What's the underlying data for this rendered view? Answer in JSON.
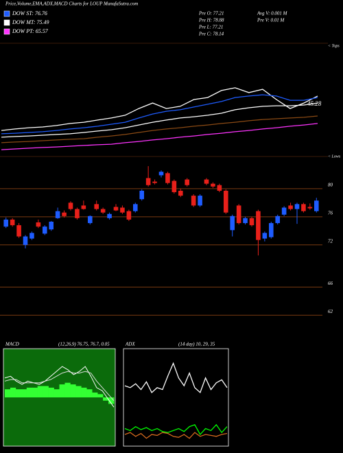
{
  "header": {
    "title": "Price,Volume,EMA,ADX,MACD Charts for LOUP MunafaSutra.com",
    "info": [
      "Pre  O: 77.21",
      "Pre  H: 78.88",
      "Pre  L: 77.21",
      "Pre  C: 78.14",
      "Avg  V: 0.001 M",
      "Pre  V: 0.01 M"
    ]
  },
  "chart_data": [
    {
      "type": "line",
      "ylim": [
        40,
        100
      ],
      "annotations": [
        "45.28",
        "< Tops",
        "< Lows"
      ],
      "series": [
        {
          "color": "#ffffff",
          "values": [
            53.1,
            53.9,
            54.6,
            55.0,
            55.8,
            56.9,
            57.6,
            58.8,
            59.9,
            61.4,
            65.1,
            68.1,
            65.1,
            66.3,
            70.0,
            71.1,
            74.9,
            76.4,
            73.8,
            75.6,
            70.0,
            65.1,
            68.1,
            71.9
          ]
        },
        {
          "name": "DOW ST: 76.76",
          "color": "#1e5cff",
          "values": [
            51.3,
            51.6,
            52.0,
            52.4,
            53.1,
            53.9,
            54.6,
            55.4,
            56.5,
            57.6,
            59.9,
            62.1,
            63.6,
            64.4,
            65.9,
            67.4,
            68.9,
            71.1,
            71.9,
            72.6,
            71.9,
            69.6,
            69.6,
            71.1
          ]
        },
        {
          "name": "DOW MT: 75.49",
          "color": "#ffffff",
          "values": [
            49.4,
            49.8,
            50.1,
            50.5,
            50.9,
            51.3,
            52.0,
            52.8,
            53.5,
            54.6,
            56.1,
            57.6,
            58.8,
            59.9,
            60.6,
            61.4,
            62.5,
            64.4,
            65.5,
            66.3,
            66.6,
            66.6,
            67.0,
            68.1
          ]
        },
        {
          "color": "#8b4a14",
          "values": [
            46.4,
            46.8,
            47.1,
            47.5,
            47.9,
            48.3,
            48.6,
            49.4,
            50.1,
            50.9,
            52.0,
            53.1,
            53.9,
            54.6,
            55.4,
            56.1,
            56.9,
            57.6,
            58.4,
            59.1,
            59.5,
            59.9,
            60.3,
            61.0
          ]
        },
        {
          "name": "DOW PT: 65.57",
          "color": "#ff33ff",
          "values": [
            42.6,
            43.0,
            43.4,
            43.8,
            44.1,
            44.5,
            44.9,
            45.3,
            45.6,
            46.4,
            47.1,
            47.9,
            48.6,
            49.4,
            50.1,
            50.9,
            51.6,
            52.4,
            53.1,
            53.9,
            54.6,
            55.4,
            56.1,
            56.9
          ]
        }
      ]
    },
    {
      "type": "candlestick",
      "ylim": [
        59,
        83.4
      ],
      "yticks": [
        80,
        76,
        72,
        66,
        62
      ],
      "grid": true,
      "up_color": "#1e5cff",
      "down_color": "#e8201a",
      "grid_color": "#7a3a10",
      "open": [
        74.6,
        75.6,
        74.8,
        72.0,
        72.9,
        75.2,
        73.6,
        74.2,
        75.8,
        76.6,
        78.0,
        77.1,
        77.6,
        75.1,
        77.8,
        77.1,
        75.8,
        77.4,
        77.3,
        76.8,
        76.8,
        78.5,
        81.5,
        81.0,
        81.9,
        82.2,
        81.1,
        79.7,
        81.3,
        79.0,
        77.6,
        81.3,
        80.7,
        80.5,
        79.7,
        74.1,
        77.6,
        75.1,
        75.8,
        76.8,
        72.9,
        73.1,
        75.1,
        76.3,
        77.6,
        77.1,
        77.8,
        77.4,
        76.8
      ],
      "high": [
        75.9,
        75.8,
        75.1,
        73.4,
        73.9,
        75.6,
        74.8,
        75.4,
        77.3,
        76.9,
        78.2,
        77.3,
        78.3,
        76.2,
        78.3,
        77.3,
        76.6,
        77.8,
        77.6,
        77.0,
        78.0,
        79.9,
        83.2,
        81.3,
        82.6,
        82.4,
        81.3,
        80.0,
        81.5,
        79.2,
        79.2,
        81.5,
        80.9,
        80.7,
        79.9,
        76.3,
        77.8,
        76.0,
        76.0,
        77.0,
        73.9,
        75.3,
        76.3,
        77.5,
        78.0,
        78.0,
        78.0,
        77.9,
        78.7
      ],
      "low": [
        74.4,
        74.6,
        73.0,
        71.5,
        72.7,
        74.4,
        73.4,
        74.0,
        75.7,
        75.9,
        76.9,
        75.6,
        77.0,
        74.9,
        76.9,
        76.4,
        75.6,
        76.8,
        76.4,
        75.4,
        76.6,
        78.3,
        80.3,
        80.6,
        81.6,
        80.6,
        79.3,
        78.8,
        80.3,
        77.4,
        77.4,
        80.5,
        80.1,
        79.5,
        76.4,
        73.2,
        74.9,
        74.9,
        74.6,
        70.5,
        72.5,
        72.9,
        74.9,
        76.1,
        76.9,
        75.0,
        76.6,
        77.0,
        76.6
      ],
      "close": [
        75.6,
        74.8,
        73.2,
        73.2,
        73.7,
        74.6,
        74.6,
        75.3,
        76.8,
        76.1,
        77.1,
        75.8,
        77.1,
        76.1,
        77.1,
        76.6,
        76.4,
        76.9,
        76.6,
        75.6,
        77.8,
        79.7,
        80.5,
        80.8,
        82.4,
        80.8,
        79.5,
        79.0,
        80.5,
        77.6,
        79.0,
        80.7,
        80.3,
        79.7,
        76.6,
        76.1,
        75.1,
        75.8,
        74.8,
        72.7,
        73.7,
        75.1,
        76.1,
        77.3,
        77.1,
        77.8,
        76.8,
        77.2,
        78.3
      ]
    },
    {
      "type": "macd",
      "title": "MACD",
      "subtitle": "(12,26,9) 76.75, 76.7, 0.05",
      "ylim": [
        -3,
        3
      ],
      "background": "#0b6b0b",
      "series": [
        {
          "kind": "bar",
          "color": "#33ff33",
          "values": [
            0.5,
            0.6,
            0.5,
            0.5,
            0.6,
            0.6,
            0.7,
            0.7,
            0.6,
            0.5,
            0.8,
            0.9,
            0.8,
            0.7,
            0.6,
            0.5,
            0.3,
            0.2,
            -0.2,
            -0.4
          ]
        },
        {
          "kind": "line",
          "color": "#ffffff",
          "values": [
            1.2,
            1.3,
            1.0,
            0.8,
            1.0,
            0.9,
            0.8,
            1.0,
            1.3,
            1.6,
            1.9,
            1.7,
            1.4,
            1.6,
            1.9,
            1.3,
            0.6,
            0.4,
            -0.1,
            -0.6
          ]
        },
        {
          "kind": "line",
          "color": "#dddddd",
          "values": [
            1.0,
            1.1,
            1.1,
            0.9,
            0.9,
            0.9,
            0.9,
            1.0,
            1.1,
            1.3,
            1.5,
            1.6,
            1.5,
            1.5,
            1.6,
            1.5,
            1.0,
            0.6,
            0.2,
            -0.2
          ]
        }
      ]
    },
    {
      "type": "line",
      "title": "ADX",
      "subtitle": "(14 day) 10, 29, 35",
      "ylim": [
        0,
        100
      ],
      "background": "#000000",
      "series": [
        {
          "color": "#ffffff",
          "values": [
            62,
            60,
            64,
            58,
            66,
            55,
            60,
            58,
            72,
            85,
            70,
            62,
            75,
            60,
            55,
            70,
            58,
            65,
            68,
            60
          ]
        },
        {
          "color": "#00ff00",
          "values": [
            18,
            16,
            20,
            17,
            19,
            16,
            18,
            15,
            14,
            16,
            18,
            15,
            20,
            22,
            12,
            18,
            16,
            22,
            14,
            20
          ]
        },
        {
          "color": "#d2691e",
          "values": [
            12,
            14,
            10,
            13,
            8,
            12,
            11,
            14,
            13,
            10,
            9,
            12,
            8,
            14,
            10,
            12,
            11,
            10,
            12,
            13
          ]
        }
      ]
    }
  ]
}
